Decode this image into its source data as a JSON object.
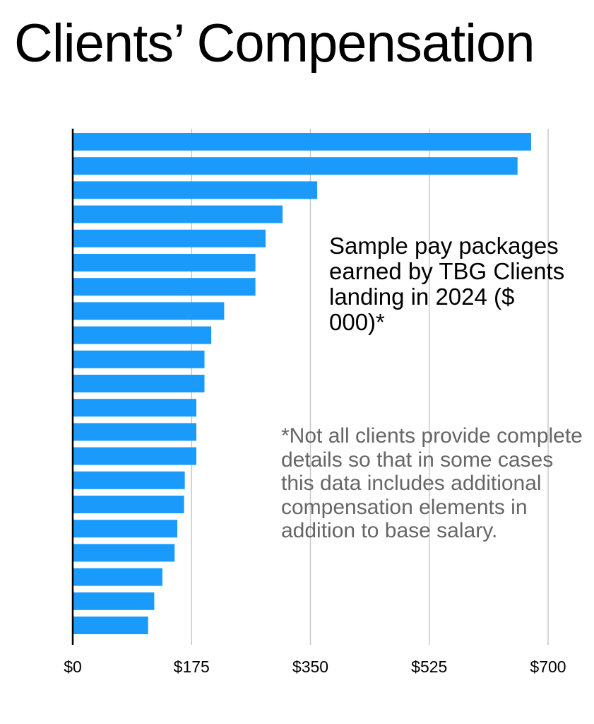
{
  "title": "Clients’ Compensation",
  "callout": "Sample pay packages earned by TBG Clients landing in 2024 ($ 000)*",
  "footnote": "*Not all clients provide complete details so that in some cases this data includes additional compensation elements in addition to base salary.",
  "colors": {
    "bar": "#1a9bfc",
    "grid": "#c8c8c8",
    "axis": "#000000"
  },
  "chart_data": {
    "type": "bar",
    "orientation": "horizontal",
    "values": [
      675,
      655,
      360,
      309,
      284,
      269,
      269,
      223,
      204,
      194,
      194,
      182,
      182,
      182,
      165,
      164,
      154,
      150,
      132,
      120,
      111
    ],
    "xlim": [
      0,
      700
    ],
    "xticks": [
      0,
      175,
      350,
      525,
      700
    ],
    "xtick_labels": [
      "$0",
      "$175",
      "$350",
      "$525",
      "$700"
    ],
    "grid": true
  }
}
